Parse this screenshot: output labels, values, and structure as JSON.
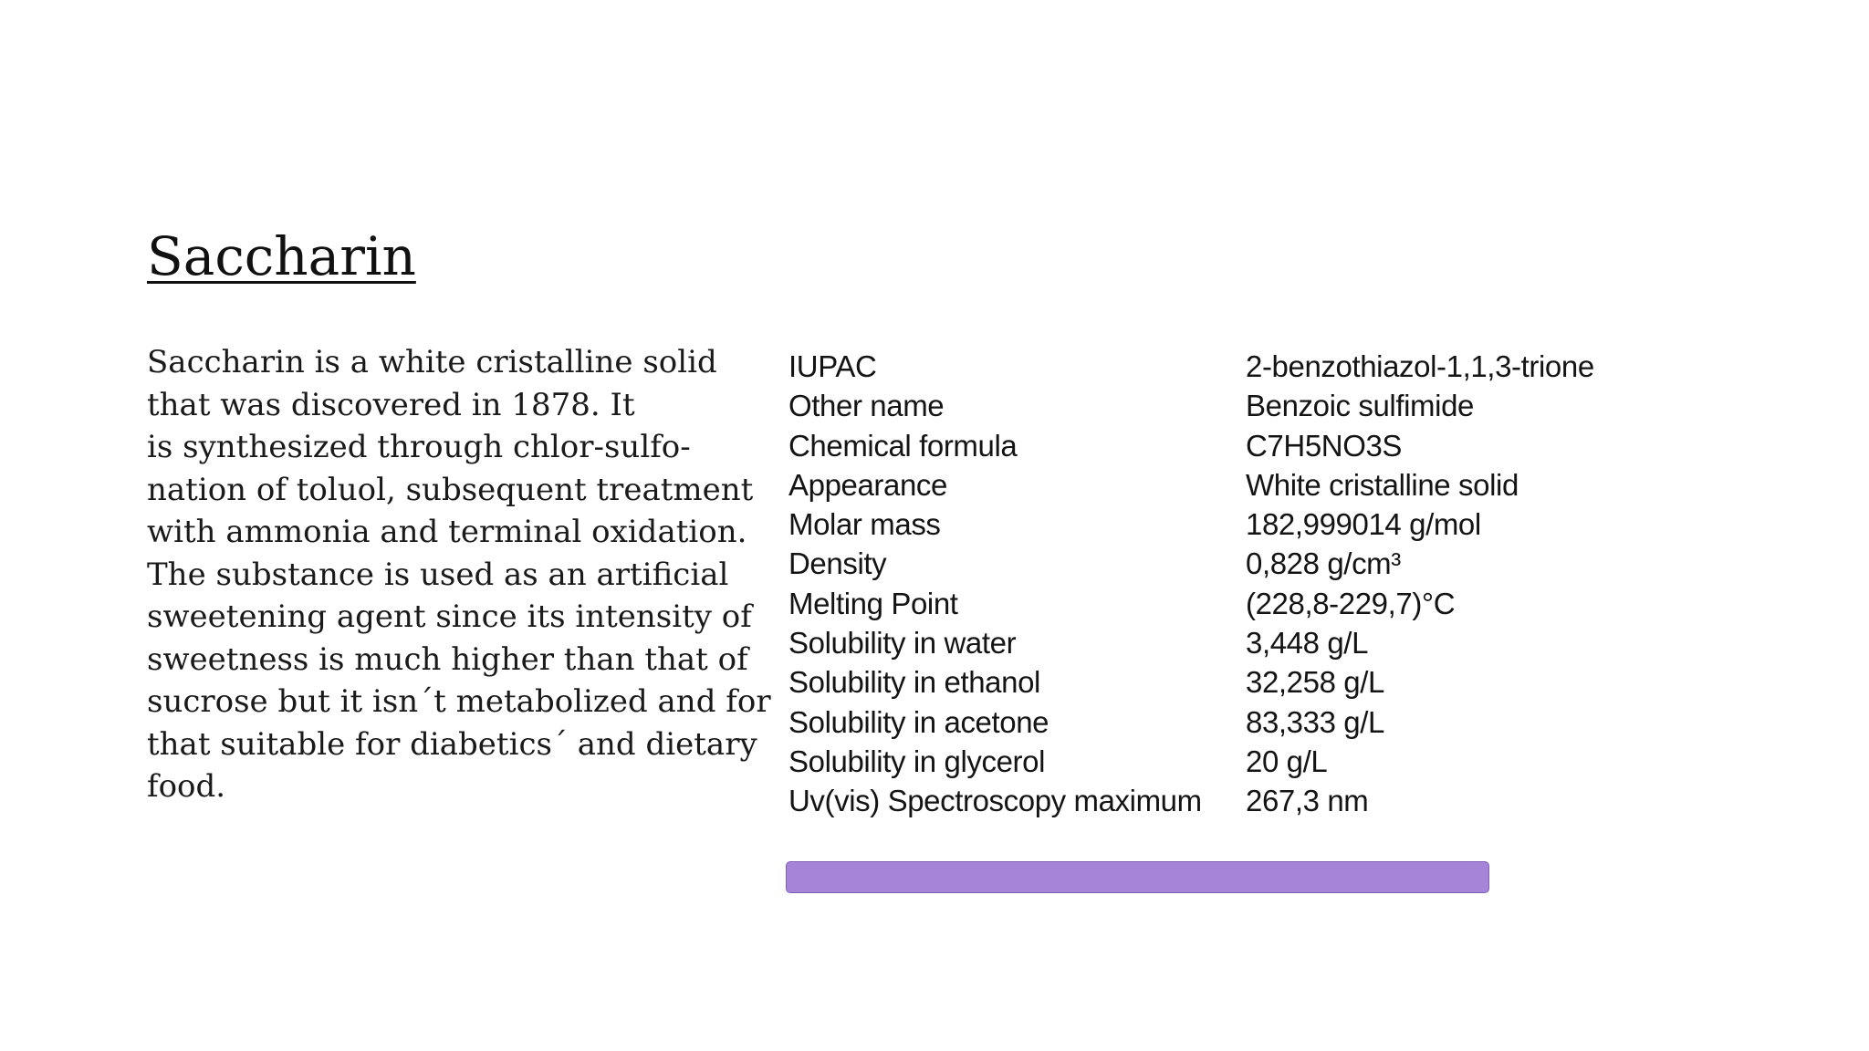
{
  "slide": {
    "title": "Saccharin",
    "body_lines": [
      "Saccharin is a white cristalline solid",
      "that was discovered in 1878. It",
      "is synthesized through chlor-sulfo-",
      "nation of toluol, subsequent treatment",
      "with ammonia and terminal oxidation.",
      "The substance is used as an artificial",
      "sweetening agent since its intensity of",
      "sweetness is much higher than that of",
      "sucrose but it isn´t metabolized and for",
      "that suitable for diabetics´ and dietary",
      "food."
    ],
    "properties": [
      {
        "name": "IUPAC",
        "value": "2-benzothiazol-1,1,3-trione"
      },
      {
        "name": "Other name",
        "value": "Benzoic sulfimide"
      },
      {
        "name": "Chemical formula",
        "value": "C7H5NO3S"
      },
      {
        "name": "Appearance",
        "value": "White cristalline solid"
      },
      {
        "name": "Molar mass",
        "value": "182,999014 g/mol"
      },
      {
        "name": "Density",
        "value": "0,828 g/cm³"
      },
      {
        "name": "Melting Point",
        "value": "(228,8-229,7)°C"
      },
      {
        "name": "Solubility in water",
        "value": "3,448 g/L"
      },
      {
        "name": "Solubility in ethanol",
        "value": "32,258 g/L"
      },
      {
        "name": "Solubility in acetone",
        "value": "83,333 g/L"
      },
      {
        "name": "Solubility in glycerol",
        "value": "20 g/L"
      },
      {
        "name": "Uv(vis) Spectroscopy maximum",
        "value": "267,3 nm"
      }
    ],
    "bar_color": "#a685d8"
  }
}
